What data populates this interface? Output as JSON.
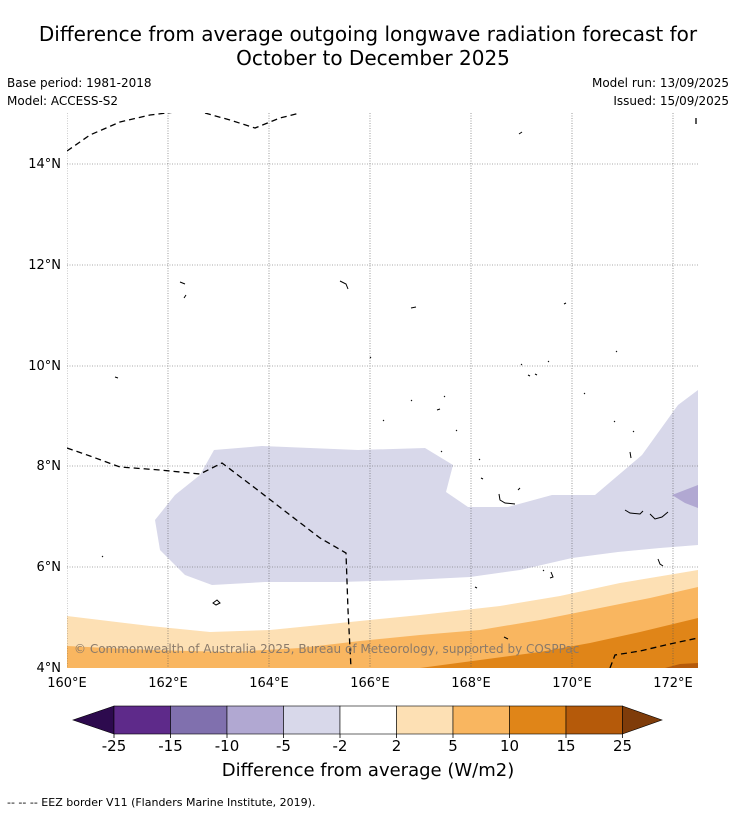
{
  "title": {
    "line1": "Difference from average outgoing longwave radiation forecast for",
    "line2": "October to December 2025"
  },
  "meta": {
    "base_period": "Base period: 1981-2018",
    "model": "Model: ACCESS-S2",
    "model_run": "Model run: 13/09/2025",
    "issued": "Issued: 15/09/2025"
  },
  "map": {
    "lat_labels": [
      "14°N",
      "12°N",
      "10°N",
      "8°N",
      "6°N",
      "4°N"
    ],
    "lon_labels": [
      "160°E",
      "162°E",
      "164°E",
      "166°E",
      "168°E",
      "170°E",
      "172°E"
    ],
    "copyright": "© Commonwealth of Australia 2025, Bureau of Meteorology, supported by COSPPac"
  },
  "colorbar": {
    "ticks": [
      "-25",
      "-15",
      "-10",
      "-5",
      "-2",
      "2",
      "5",
      "10",
      "15",
      "25"
    ],
    "colors": [
      "#2d0a4e",
      "#5e2a8a",
      "#8070ae",
      "#b1a8d2",
      "#d8d8ea",
      "#ffffff",
      "#fde0b4",
      "#f9b660",
      "#e08518",
      "#b55a0a",
      "#7f3c0a"
    ],
    "title": "Difference from average (W/m2)"
  },
  "footnote": "--  --  -- EEZ border V11 (Flanders Marine Institute, 2019)."
}
